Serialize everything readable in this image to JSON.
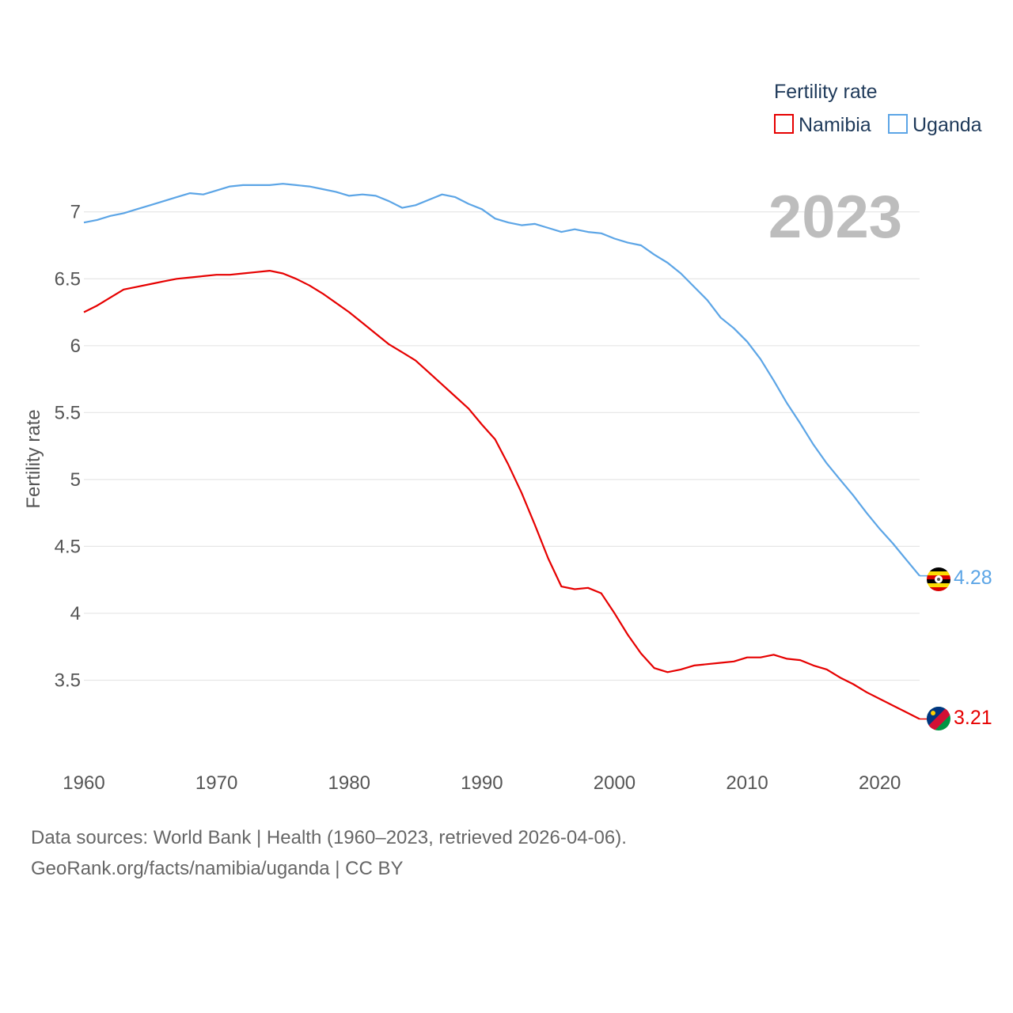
{
  "chart_data": {
    "type": "line",
    "year_label": "2023",
    "ylabel": "Fertility rate",
    "legend_title": "Fertility rate",
    "legend_position": "top-right",
    "ylim": [
      3.0,
      7.3
    ],
    "xlim": [
      1960,
      2023
    ],
    "yticks": [
      3.5,
      4,
      4.5,
      5,
      5.5,
      6,
      6.5,
      7
    ],
    "ytick_labels": [
      "3.5",
      "4",
      "4.5",
      "5",
      "5.5",
      "6",
      "6.5",
      "7"
    ],
    "xticks": [
      1960,
      1970,
      1980,
      1990,
      2000,
      2010,
      2020
    ],
    "xtick_labels": [
      "1960",
      "1970",
      "1980",
      "1990",
      "2000",
      "2010",
      "2020"
    ],
    "grid": true,
    "x": [
      1960,
      1961,
      1962,
      1963,
      1964,
      1965,
      1966,
      1967,
      1968,
      1969,
      1970,
      1971,
      1972,
      1973,
      1974,
      1975,
      1976,
      1977,
      1978,
      1979,
      1980,
      1981,
      1982,
      1983,
      1984,
      1985,
      1986,
      1987,
      1988,
      1989,
      1990,
      1991,
      1992,
      1993,
      1994,
      1995,
      1996,
      1997,
      1998,
      1999,
      2000,
      2001,
      2002,
      2003,
      2004,
      2005,
      2006,
      2007,
      2008,
      2009,
      2010,
      2011,
      2012,
      2013,
      2014,
      2015,
      2016,
      2017,
      2018,
      2019,
      2020,
      2021,
      2022,
      2023
    ],
    "series": [
      {
        "name": "Namibia",
        "color": "#e60000",
        "end_label": "3.21",
        "flag": "namibia-flag",
        "values": [
          6.25,
          6.3,
          6.36,
          6.42,
          6.44,
          6.46,
          6.48,
          6.5,
          6.51,
          6.52,
          6.53,
          6.53,
          6.54,
          6.55,
          6.56,
          6.54,
          6.5,
          6.45,
          6.39,
          6.32,
          6.25,
          6.17,
          6.09,
          6.01,
          5.95,
          5.89,
          5.8,
          5.71,
          5.62,
          5.53,
          5.41,
          5.3,
          5.11,
          4.9,
          4.66,
          4.41,
          4.2,
          4.18,
          4.19,
          4.15,
          4.0,
          3.84,
          3.7,
          3.59,
          3.56,
          3.58,
          3.61,
          3.62,
          3.63,
          3.64,
          3.67,
          3.67,
          3.69,
          3.66,
          3.65,
          3.61,
          3.58,
          3.52,
          3.47,
          3.41,
          3.36,
          3.31,
          3.26,
          3.21
        ]
      },
      {
        "name": "Uganda",
        "color": "#5ca5e6",
        "end_label": "4.28",
        "flag": "uganda-flag",
        "values": [
          6.92,
          6.94,
          6.97,
          6.99,
          7.02,
          7.05,
          7.08,
          7.11,
          7.14,
          7.13,
          7.16,
          7.19,
          7.2,
          7.2,
          7.2,
          7.21,
          7.2,
          7.19,
          7.17,
          7.15,
          7.12,
          7.13,
          7.12,
          7.08,
          7.03,
          7.05,
          7.09,
          7.13,
          7.11,
          7.06,
          7.02,
          6.95,
          6.92,
          6.9,
          6.91,
          6.88,
          6.85,
          6.87,
          6.85,
          6.84,
          6.8,
          6.77,
          6.75,
          6.68,
          6.62,
          6.54,
          6.44,
          6.34,
          6.21,
          6.13,
          6.03,
          5.9,
          5.74,
          5.57,
          5.42,
          5.26,
          5.12,
          5.0,
          4.88,
          4.75,
          4.63,
          4.52,
          4.4,
          4.28
        ]
      }
    ]
  },
  "footer": {
    "sources": "Data sources: World Bank | Health (1960–2023, retrieved 2026-04-06).",
    "credit": "GeoRank.org/facts/namibia/uganda | CC BY"
  }
}
